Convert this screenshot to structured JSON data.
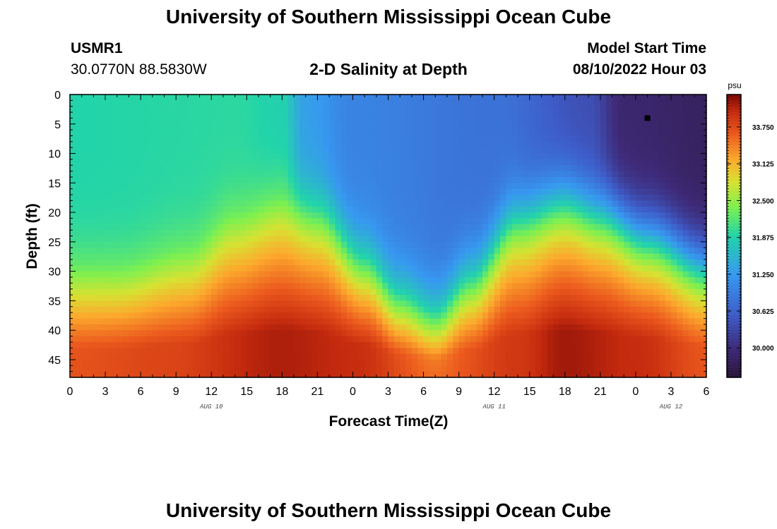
{
  "page": {
    "title_top": "University of Southern Mississippi Ocean Cube",
    "title_bottom": "University of Southern Mississippi Ocean Cube",
    "station_id": "USMR1",
    "coordinates": "30.0770N  88.5830W",
    "plot_title": "2-D Salinity at Depth",
    "model_start_label": "Model Start Time",
    "model_start_value": "08/10/2022 Hour 03"
  },
  "chart_data": {
    "type": "heatmap",
    "title": "2-D Salinity at Depth",
    "xlabel": "Forecast Time(Z)",
    "ylabel": "Depth (ft)",
    "x_hours_range": [
      0,
      54
    ],
    "x_tick_hours": [
      0,
      3,
      6,
      9,
      12,
      15,
      18,
      21,
      24,
      27,
      30,
      33,
      36,
      39,
      42,
      45,
      48,
      51,
      54
    ],
    "x_tick_labels": [
      "0",
      "3",
      "6",
      "9",
      "12",
      "15",
      "18",
      "21",
      "0",
      "3",
      "6",
      "9",
      "12",
      "15",
      "18",
      "21",
      "0",
      "3",
      "6"
    ],
    "date_labels": [
      {
        "hour": 12,
        "label": "AUG 10"
      },
      {
        "hour": 36,
        "label": "AUG 11"
      },
      {
        "hour": 51,
        "label": "AUG 12"
      }
    ],
    "y_range_ft": [
      0,
      48
    ],
    "y_ticks": [
      0,
      5,
      10,
      15,
      20,
      25,
      30,
      35,
      40,
      45
    ],
    "y_tick_labels": [
      "0",
      "5",
      "10",
      "15",
      "20",
      "25",
      "30",
      "35",
      "40",
      "45"
    ],
    "colorbar": {
      "units": "psu",
      "range": [
        29.5,
        34.3
      ],
      "ticks": [
        30.0,
        30.625,
        31.25,
        31.875,
        32.5,
        33.125,
        33.75
      ],
      "tick_labels": [
        "30.000",
        "30.625",
        "31.250",
        "31.875",
        "32.500",
        "33.125",
        "33.750"
      ]
    },
    "marker": {
      "hour": 49,
      "depth_ft": 4
    },
    "halocline_depth_ft": [
      {
        "hour": 0,
        "depth": 29
      },
      {
        "hour": 4,
        "depth": 29
      },
      {
        "hour": 10,
        "depth": 26
      },
      {
        "hour": 14,
        "depth": 20
      },
      {
        "hour": 18,
        "depth": 17
      },
      {
        "hour": 21,
        "depth": 19
      },
      {
        "hour": 25,
        "depth": 27
      },
      {
        "hour": 28,
        "depth": 33
      },
      {
        "hour": 31,
        "depth": 36
      },
      {
        "hour": 34,
        "depth": 30
      },
      {
        "hour": 38,
        "depth": 20
      },
      {
        "hour": 42,
        "depth": 17
      },
      {
        "hour": 45,
        "depth": 19
      },
      {
        "hour": 49,
        "depth": 23
      },
      {
        "hour": 54,
        "depth": 28
      }
    ],
    "surface_salinity_psu": [
      {
        "hour": 0,
        "value": 31.9
      },
      {
        "hour": 14,
        "value": 31.95
      },
      {
        "hour": 18,
        "value": 31.85
      },
      {
        "hour": 20,
        "value": 31.3
      },
      {
        "hour": 24,
        "value": 31.0
      },
      {
        "hour": 36,
        "value": 30.8
      },
      {
        "hour": 44,
        "value": 30.4
      },
      {
        "hour": 47,
        "value": 29.9
      },
      {
        "hour": 54,
        "value": 29.8
      }
    ],
    "bottom_salinity_psu": [
      {
        "hour": 0,
        "value": 33.7
      },
      {
        "hour": 8,
        "value": 33.8
      },
      {
        "hour": 18,
        "value": 34.1
      },
      {
        "hour": 24,
        "value": 34.0
      },
      {
        "hour": 31,
        "value": 33.6
      },
      {
        "hour": 38,
        "value": 33.9
      },
      {
        "hour": 42,
        "value": 34.15
      },
      {
        "hour": 48,
        "value": 34.0
      },
      {
        "hour": 54,
        "value": 33.7
      }
    ]
  }
}
